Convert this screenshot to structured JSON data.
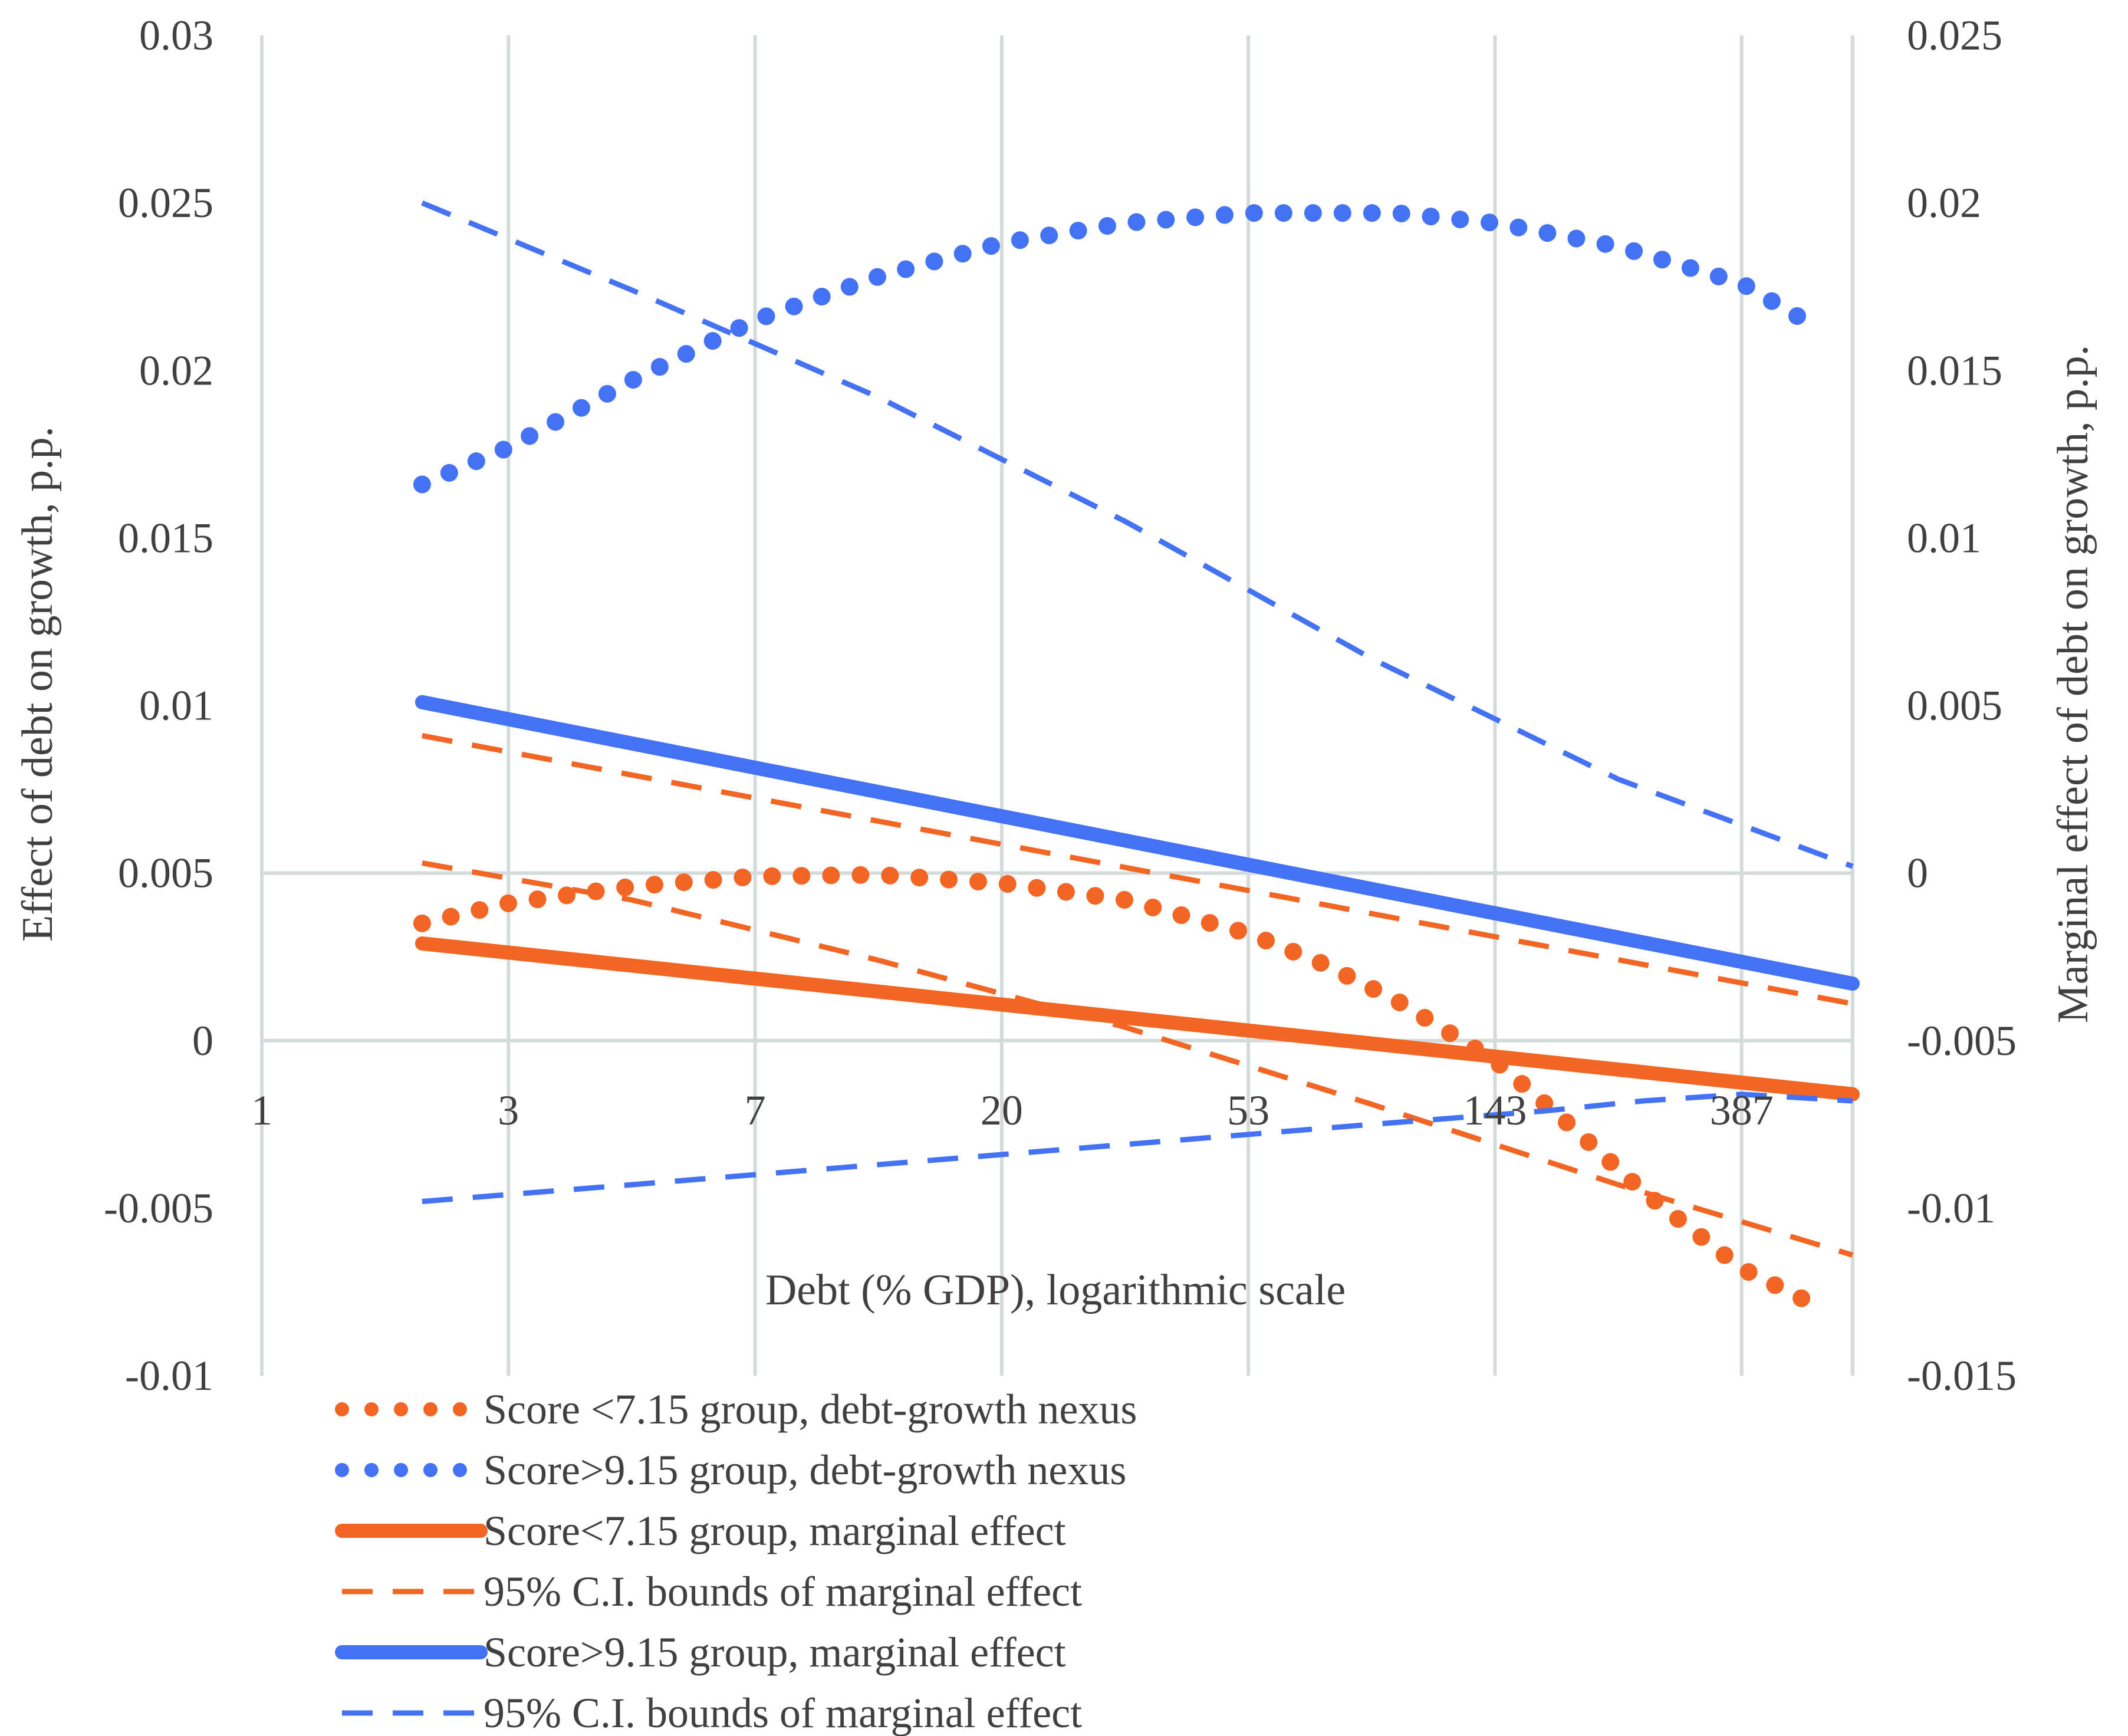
{
  "chart_data": {
    "type": "line",
    "title": "",
    "xlabel": "Debt (% GDP), logarithmic scale",
    "ylabel_left": "Effect of debt on growth, p.p.",
    "ylabel_right": "Marginal effect of debt on growth, p.p.",
    "x_tick_labels": [
      "1",
      "3",
      "7",
      "20",
      "53",
      "143",
      "387"
    ],
    "x_tick_log_values": [
      0,
      1,
      2,
      3,
      4,
      5,
      6
    ],
    "x_range_log": [
      0,
      6.45
    ],
    "ylim_left": [
      -0.01,
      0.03
    ],
    "ylim_right": [
      -0.015,
      0.025
    ],
    "y_ticks_left": [
      -0.01,
      -0.005,
      0,
      0.005,
      0.01,
      0.015,
      0.02,
      0.025,
      0.03
    ],
    "y_tick_labels_left": [
      "-0.01",
      "-0.005",
      "0",
      "0.005",
      "0.01",
      "0.015",
      "0.02",
      "0.025",
      "0.03"
    ],
    "y_ticks_right": [
      -0.015,
      -0.01,
      -0.005,
      0,
      0.005,
      0.01,
      0.015,
      0.02,
      0.025
    ],
    "y_tick_labels_right": [
      "-0.015",
      "-0.01",
      "-0.005",
      "0",
      "0.005",
      "0.01",
      "0.015",
      "0.02",
      "0.025"
    ],
    "grid": "vertical",
    "legend_position": "bottom-left",
    "series": [
      {
        "name": "Score <7.15 group, debt-growth nexus",
        "axis": "left",
        "style": "dotted",
        "color": "#F26522",
        "x": [
          0.65,
          1.0,
          1.5,
          2.0,
          2.5,
          3.0,
          3.5,
          4.0,
          4.3,
          4.6,
          5.0,
          5.3,
          5.6,
          6.0,
          6.3
        ],
        "y": [
          0.0035,
          0.0041,
          0.0046,
          0.0049,
          0.00495,
          0.0047,
          0.0042,
          0.0032,
          0.0023,
          0.0012,
          -0.0006,
          -0.0025,
          -0.0045,
          -0.0068,
          -0.0079
        ]
      },
      {
        "name": "Score>9.15 group, debt-growth nexus",
        "axis": "left",
        "style": "dotted",
        "color": "#4472F5",
        "x": [
          0.65,
          1.0,
          1.5,
          2.0,
          2.5,
          3.0,
          3.5,
          4.0,
          4.3,
          4.6,
          5.0,
          5.5,
          6.0,
          6.3
        ],
        "y": [
          0.0166,
          0.0177,
          0.0197,
          0.0215,
          0.0228,
          0.0238,
          0.0244,
          0.0247,
          0.0247,
          0.0247,
          0.0244,
          0.0237,
          0.0226,
          0.0213
        ]
      },
      {
        "name": "Score<7.15 group, marginal effect",
        "axis": "right",
        "style": "solid-thick",
        "color": "#F26522",
        "x": [
          0.65,
          6.45
        ],
        "y": [
          -0.0021,
          -0.0066
        ]
      },
      {
        "name": "95% C.I. bounds of marginal effect",
        "axis": "right",
        "style": "dashed",
        "color": "#F26522",
        "x": [
          0.65,
          6.45
        ],
        "y": [
          0.0041,
          -0.0039
        ]
      },
      {
        "name": "",
        "axis": "right",
        "style": "dashed",
        "color": "#F26522",
        "x": [
          0.65,
          1.5,
          2.5,
          3.5,
          4.5,
          5.5,
          6.45
        ],
        "y": [
          0.0003,
          -0.0008,
          -0.0026,
          -0.0046,
          -0.0069,
          -0.0093,
          -0.0114
        ]
      },
      {
        "name": "Score>9.15 group, marginal effect",
        "axis": "right",
        "style": "solid-thick",
        "color": "#4472F5",
        "x": [
          0.65,
          6.45
        ],
        "y": [
          0.0051,
          -0.0033
        ]
      },
      {
        "name": "95% C.I. bounds of marginal effect",
        "axis": "right",
        "style": "dashed",
        "color": "#4472F5",
        "x": [
          0.65,
          1.5,
          2.5,
          3.5,
          4.5,
          5.5,
          6.45
        ],
        "y": [
          0.02,
          0.0174,
          0.0142,
          0.0105,
          0.0064,
          0.0028,
          0.0002
        ]
      },
      {
        "name": "",
        "axis": "right",
        "style": "dashed",
        "color": "#4472F5",
        "x": [
          0.65,
          1.5,
          2.5,
          3.5,
          4.5,
          5.2,
          5.6,
          6.0,
          6.45
        ],
        "y": [
          -0.0098,
          -0.0093,
          -0.0087,
          -0.0081,
          -0.0075,
          -0.0071,
          -0.0068,
          -0.0066,
          -0.0068
        ]
      }
    ]
  }
}
